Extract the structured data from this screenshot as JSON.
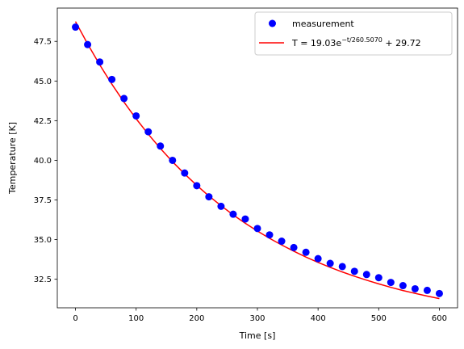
{
  "chart_data": {
    "type": "scatter",
    "xlabel": "Time [s]",
    "ylabel": "Temperature [K]",
    "xlim": [
      -30,
      630
    ],
    "ylim": [
      30.7,
      49.6
    ],
    "xticks": [
      0,
      100,
      200,
      300,
      400,
      500,
      600
    ],
    "xtick_labels": [
      "0",
      "100",
      "200",
      "300",
      "400",
      "500",
      "600"
    ],
    "yticks": [
      32.5,
      35.0,
      37.5,
      40.0,
      42.5,
      45.0,
      47.5
    ],
    "ytick_labels": [
      "32.5",
      "35.0",
      "37.5",
      "40.0",
      "42.5",
      "45.0",
      "47.5"
    ],
    "grid": false,
    "legend_position": "top-right",
    "series": [
      {
        "name": "measurement",
        "kind": "scatter",
        "color": "#0000ff",
        "x": [
          0,
          20,
          40,
          60,
          80,
          100,
          120,
          140,
          160,
          180,
          200,
          220,
          240,
          260,
          280,
          300,
          320,
          340,
          360,
          380,
          400,
          420,
          440,
          460,
          480,
          500,
          520,
          540,
          560,
          580,
          600
        ],
        "y": [
          48.4,
          47.3,
          46.2,
          45.1,
          43.9,
          42.8,
          41.8,
          40.9,
          40.0,
          39.2,
          38.4,
          37.7,
          37.1,
          36.6,
          36.3,
          35.7,
          35.3,
          34.9,
          34.5,
          34.2,
          33.8,
          33.5,
          33.3,
          33.0,
          32.8,
          32.6,
          32.3,
          32.1,
          31.9,
          31.8,
          31.6
        ]
      },
      {
        "name": "T = 19.03e^{-t/260.5070} + 29.72",
        "kind": "line",
        "color": "#ff0000",
        "x": [
          0,
          20,
          40,
          60,
          80,
          100,
          120,
          140,
          160,
          180,
          200,
          220,
          240,
          260,
          280,
          300,
          320,
          340,
          360,
          380,
          400,
          420,
          440,
          460,
          480,
          500,
          520,
          540,
          560,
          580,
          600
        ],
        "y": [
          48.75,
          47.34,
          46.02,
          44.8,
          43.67,
          42.62,
          41.65,
          40.75,
          39.91,
          39.14,
          38.42,
          37.75,
          37.14,
          36.56,
          36.03,
          35.54,
          35.08,
          34.66,
          34.27,
          33.9,
          33.56,
          33.25,
          32.96,
          32.69,
          32.44,
          32.21,
          31.99,
          31.79,
          31.61,
          31.44,
          31.28
        ]
      }
    ],
    "legend": {
      "entries": [
        {
          "label": "measurement",
          "marker": "circle",
          "color": "#0000ff"
        },
        {
          "label_prefix": "T = 19.03e",
          "label_sup": "−t/260.5070",
          "label_suffix": " + 29.72",
          "marker": "line",
          "color": "#ff0000"
        }
      ]
    }
  }
}
